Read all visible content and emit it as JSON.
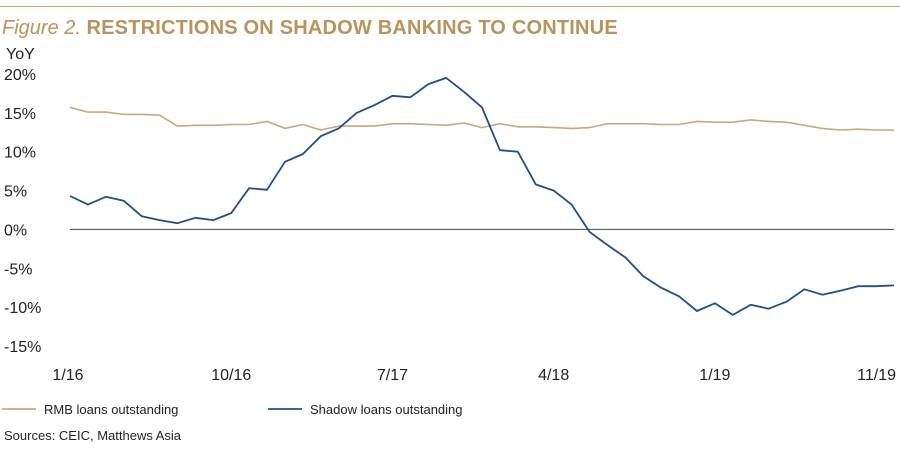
{
  "title": {
    "figure_label": "Figure 2.",
    "text": "RESTRICTIONS ON SHADOW BANKING TO CONTINUE"
  },
  "sources": "Sources: CEIC, Matthews Asia",
  "colors": {
    "title": "#b8935b",
    "rmb": "#c9a878",
    "shadow": "#1f4e8c",
    "axis_text": "#222222"
  },
  "chart_data": {
    "type": "line",
    "ylabel": "YoY",
    "ylim": [
      -15,
      20
    ],
    "yticks": [
      20,
      15,
      10,
      5,
      0,
      -5,
      -10,
      -15
    ],
    "ytick_labels": [
      "20%",
      "15%",
      "10%",
      "5%",
      "0%",
      "-5%",
      "-10%",
      "-15%"
    ],
    "xtick_labels": [
      {
        "label": "1/16",
        "index": 0
      },
      {
        "label": "10/16",
        "index": 9
      },
      {
        "label": "7/17",
        "index": 18
      },
      {
        "label": "4/18",
        "index": 27
      },
      {
        "label": "1/19",
        "index": 36
      },
      {
        "label": "11/19",
        "index": 46
      }
    ],
    "grid": false,
    "legend_position": "bottom",
    "series": [
      {
        "name": "RMB loans outstanding",
        "values": [
          15.7,
          15.1,
          15.1,
          14.8,
          14.8,
          14.7,
          13.3,
          13.4,
          13.4,
          13.5,
          13.5,
          13.9,
          13.0,
          13.5,
          12.8,
          13.3,
          13.3,
          13.3,
          13.6,
          13.6,
          13.5,
          13.4,
          13.7,
          13.1,
          13.6,
          13.2,
          13.2,
          13.1,
          13.0,
          13.1,
          13.6,
          13.6,
          13.6,
          13.5,
          13.5,
          13.9,
          13.8,
          13.8,
          14.1,
          13.9,
          13.8,
          13.4,
          13.0,
          12.8,
          12.9,
          12.8,
          12.8
        ]
      },
      {
        "name": "Shadow loans outstanding",
        "values": [
          4.3,
          3.2,
          4.2,
          3.7,
          1.7,
          1.2,
          0.8,
          1.5,
          1.2,
          2.1,
          5.3,
          5.1,
          8.7,
          9.7,
          12.0,
          13.0,
          15.0,
          16.0,
          17.2,
          17.0,
          18.7,
          19.5,
          17.7,
          15.7,
          10.2,
          10.0,
          5.8,
          5.0,
          3.2,
          -0.3,
          -2.0,
          -3.6,
          -6.0,
          -7.5,
          -8.6,
          -10.5,
          -9.5,
          -11.0,
          -9.7,
          -10.2,
          -9.3,
          -7.7,
          -8.4,
          -7.9,
          -7.3,
          -7.3,
          -7.2
        ]
      }
    ]
  }
}
